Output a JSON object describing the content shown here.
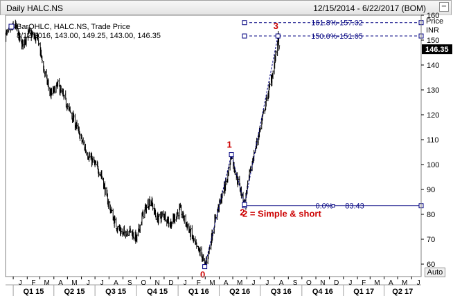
{
  "header": {
    "title": "Daily HALC.NS",
    "date_range": "12/15/2014 - 6/22/2017 (BOM)",
    "minimize_icon": "minimize-icon"
  },
  "legend": {
    "icon": "chart-settings-icon",
    "line1": "BarOHLC, HALC.NS, Trade Price",
    "line2": "8/12/2016, 143.00, 149.25, 143.00, 146.35"
  },
  "price_axis": {
    "title": "Price",
    "unit": "INR",
    "last_price": "146.35"
  },
  "auto_button": "Auto",
  "colors": {
    "price_bars": "#000000",
    "fib_lines": "#000080",
    "wave_labels": "#cc0000",
    "last_price_tag": "#000000"
  },
  "chart_data": {
    "type": "ohlc",
    "title": "Daily HALC.NS",
    "x_range": [
      "2014-12-15",
      "2017-06-22"
    ],
    "ylim": [
      55,
      160
    ],
    "y_ticks": [
      60,
      70,
      80,
      90,
      100,
      110,
      120,
      130,
      140,
      150,
      160
    ],
    "month_ticks": [
      "J",
      "F",
      "M",
      "A",
      "M",
      "J",
      "J",
      "A",
      "S",
      "O",
      "N",
      "D",
      "J",
      "F",
      "M",
      "A",
      "M",
      "J",
      "J",
      "A",
      "S",
      "O",
      "N",
      "D",
      "J",
      "F",
      "M",
      "A",
      "M",
      "J"
    ],
    "quarters": [
      "Q1 15",
      "Q2 15",
      "Q3 15",
      "Q4 15",
      "Q1 16",
      "Q2 16",
      "Q3 16",
      "Q4 16",
      "Q1 17",
      "Q2 17"
    ],
    "price_path": [
      [
        "2014-12-15",
        152
      ],
      [
        "2015-01-05",
        156
      ],
      [
        "2015-01-20",
        148
      ],
      [
        "2015-02-05",
        153
      ],
      [
        "2015-02-25",
        150
      ],
      [
        "2015-03-10",
        138
      ],
      [
        "2015-03-25",
        128
      ],
      [
        "2015-04-10",
        132
      ],
      [
        "2015-04-25",
        126
      ],
      [
        "2015-05-15",
        118
      ],
      [
        "2015-06-01",
        110
      ],
      [
        "2015-06-15",
        104
      ],
      [
        "2015-07-01",
        100
      ],
      [
        "2015-07-15",
        96
      ],
      [
        "2015-07-28",
        86
      ],
      [
        "2015-08-15",
        76
      ],
      [
        "2015-09-01",
        72
      ],
      [
        "2015-09-15",
        74
      ],
      [
        "2015-10-01",
        70
      ],
      [
        "2015-10-15",
        80
      ],
      [
        "2015-11-01",
        86
      ],
      [
        "2015-11-15",
        78
      ],
      [
        "2015-12-01",
        80
      ],
      [
        "2015-12-15",
        76
      ],
      [
        "2016-01-05",
        82
      ],
      [
        "2016-01-20",
        76
      ],
      [
        "2016-02-01",
        71
      ],
      [
        "2016-02-12",
        66
      ],
      [
        "2016-02-22",
        64
      ],
      [
        "2016-02-29",
        59
      ],
      [
        "2016-03-10",
        66
      ],
      [
        "2016-03-25",
        80
      ],
      [
        "2016-04-05",
        86
      ],
      [
        "2016-04-18",
        94
      ],
      [
        "2016-04-28",
        104
      ],
      [
        "2016-05-08",
        96
      ],
      [
        "2016-05-18",
        90
      ],
      [
        "2016-05-27",
        84
      ],
      [
        "2016-06-05",
        94
      ],
      [
        "2016-06-12",
        100
      ],
      [
        "2016-06-22",
        108
      ],
      [
        "2016-07-05",
        118
      ],
      [
        "2016-07-15",
        126
      ],
      [
        "2016-07-25",
        134
      ],
      [
        "2016-08-01",
        140
      ],
      [
        "2016-08-06",
        147
      ],
      [
        "2016-08-09",
        151
      ],
      [
        "2016-08-12",
        146.35
      ]
    ],
    "wave_points": [
      {
        "label": "0",
        "date": "2016-02-29",
        "value": 59
      },
      {
        "label": "1",
        "date": "2016-04-28",
        "value": 104
      },
      {
        "label": "2",
        "date": "2016-05-27",
        "value": 84
      },
      {
        "label": "3",
        "date": "2016-08-09",
        "value": 151.65
      }
    ],
    "wave2_note": "2 = Simple & short",
    "fib_levels": [
      {
        "label": "161.8%-157.02",
        "value": 157.02
      },
      {
        "label": "150.0%-151.65",
        "value": 151.65
      },
      {
        "label": "0.0%",
        "value": 83.43,
        "price_label": "83.43"
      }
    ],
    "fib_start_date": "2016-05-27",
    "last_price": 146.35
  }
}
